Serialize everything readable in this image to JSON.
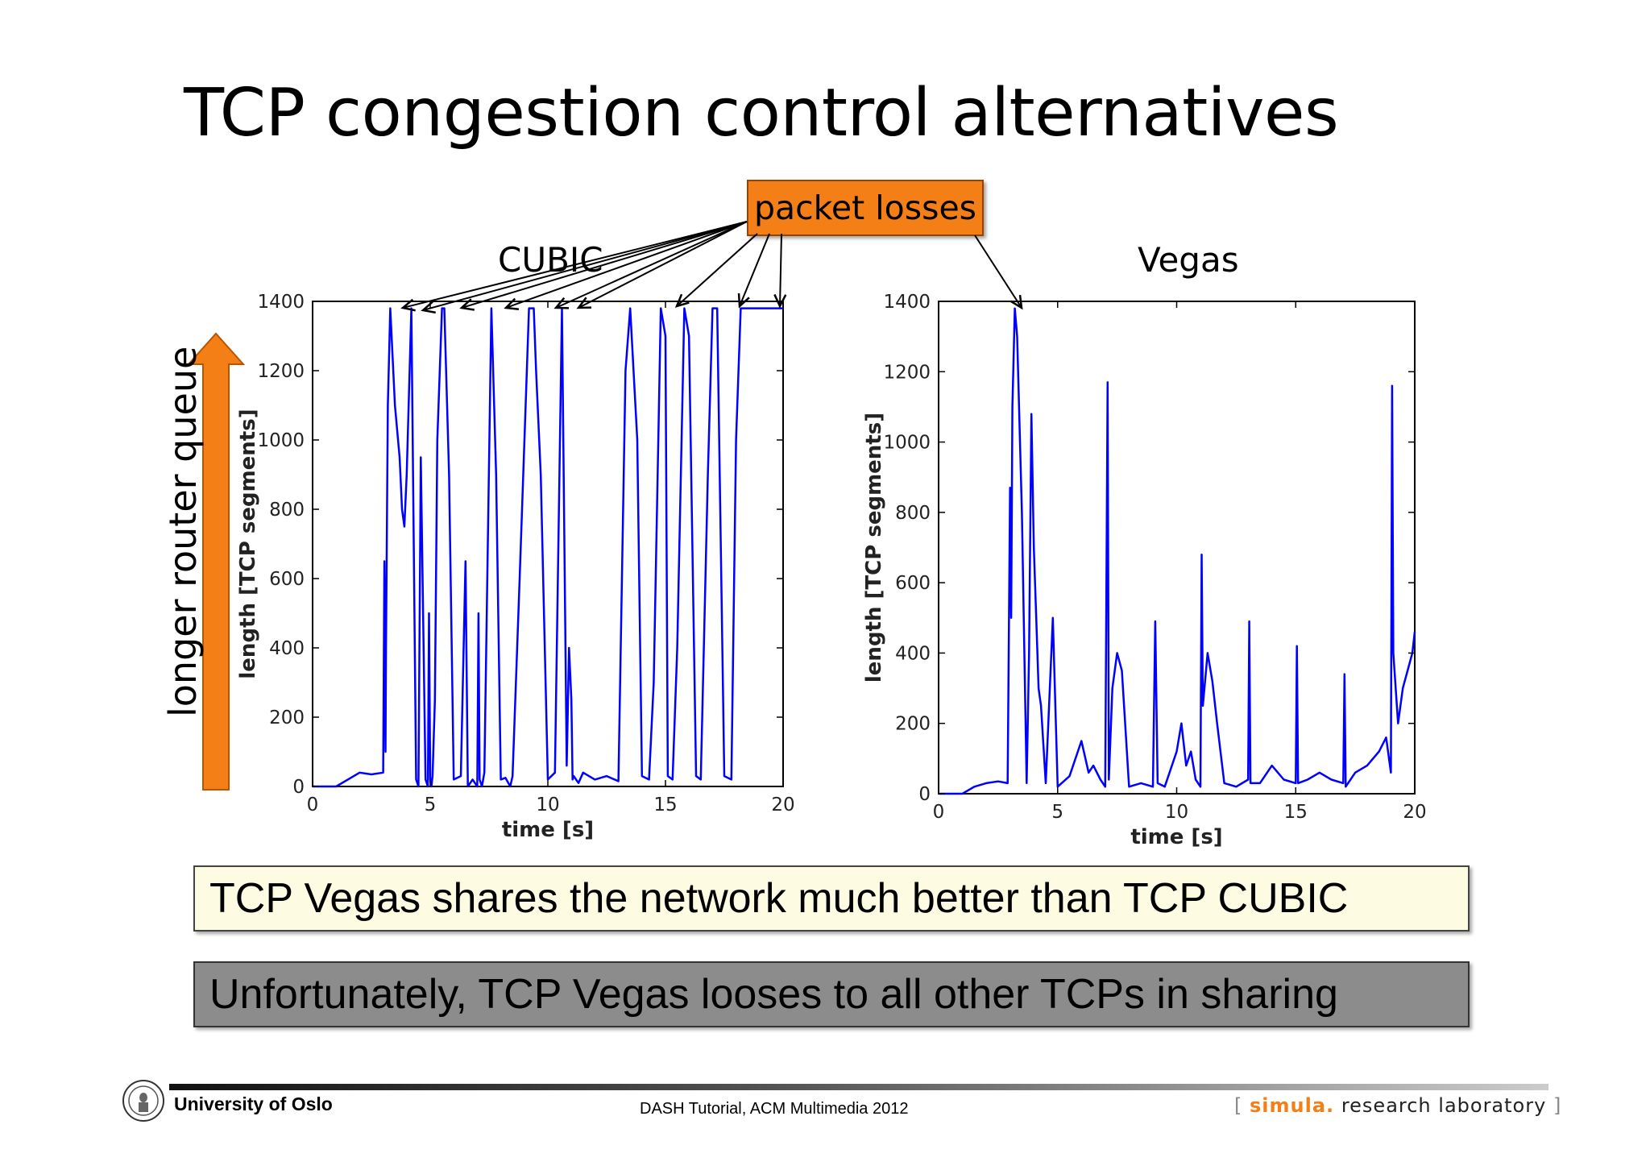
{
  "slide": {
    "title": "TCP congestion control alternatives",
    "callout": "packet losses",
    "side_label": "longer router queue",
    "box1": "TCP Vegas shares the network much better than TCP CUBIC",
    "box2": "Unfortunately, TCP Vegas looses to all other TCPs in sharing",
    "footer_left": "University of Oslo",
    "footer_center": "DASH Tutorial, ACM Multimedia 2012",
    "footer_right_open": "[",
    "footer_right_simula": "simula",
    "footer_right_dot": ".",
    "footer_right_rest": "research laboratory",
    "footer_right_close": "]"
  },
  "colors": {
    "series": "#0000ff",
    "callout": "#f57f17",
    "box1": "#fefbe3",
    "box2": "#8c8c8c",
    "arrow": "#f57f17"
  },
  "icons": {
    "logo": "university-seal-icon",
    "arrow": "up-arrow-icon"
  },
  "chart_data": [
    {
      "type": "line",
      "title": "CUBIC",
      "xlabel": "time [s]",
      "ylabel": "length [TCP segments]",
      "xlim": [
        0,
        20
      ],
      "ylim": [
        0,
        1400
      ],
      "xticks": [
        0,
        5,
        10,
        15,
        20
      ],
      "yticks": [
        0,
        200,
        400,
        600,
        800,
        1000,
        1200,
        1400
      ],
      "grid": false,
      "series": [
        {
          "x": [
            0,
            1.0,
            1.5,
            2.0,
            2.5,
            3.0,
            3.05,
            3.1,
            3.12,
            3.2,
            3.3,
            3.5,
            3.7,
            3.8,
            3.9,
            4.0,
            4.2,
            4.4,
            4.5,
            4.6,
            4.8,
            4.9,
            4.95,
            5.0,
            5.05,
            5.1,
            5.2,
            5.3,
            5.5,
            5.6,
            5.8,
            6.0,
            6.3,
            6.5,
            6.6,
            6.8,
            7.0,
            7.05,
            7.1,
            7.2,
            7.3,
            7.6,
            7.8,
            8.0,
            8.2,
            8.4,
            8.5,
            8.8,
            9.2,
            9.4,
            9.5,
            9.7,
            10.0,
            10.3,
            10.6,
            10.8,
            10.9,
            11.0,
            11.05,
            11.1,
            11.2,
            11.3,
            11.5,
            12.0,
            12.5,
            13.0,
            13.3,
            13.5,
            13.8,
            14.0,
            14.3,
            14.5,
            14.8,
            15.0,
            15.1,
            15.3,
            15.5,
            15.8,
            16.0,
            16.3,
            16.5,
            16.8,
            17.0,
            17.2,
            17.5,
            17.8,
            18.0,
            18.2,
            18.5,
            18.8,
            19.0,
            19.1,
            19.3,
            19.5,
            19.7,
            19.9,
            20.0
          ],
          "y": [
            0,
            0,
            20,
            40,
            35,
            40,
            650,
            100,
            400,
            1100,
            1380,
            1100,
            950,
            800,
            750,
            900,
            1380,
            20,
            0,
            950,
            20,
            0,
            500,
            20,
            0,
            30,
            250,
            1000,
            1380,
            1380,
            900,
            20,
            30,
            650,
            0,
            20,
            0,
            500,
            20,
            0,
            40,
            1380,
            900,
            20,
            25,
            0,
            30,
            600,
            1380,
            1380,
            1200,
            900,
            20,
            40,
            1380,
            60,
            400,
            250,
            20,
            30,
            20,
            10,
            40,
            20,
            30,
            15,
            1200,
            1380,
            1000,
            30,
            20,
            300,
            1380,
            1300,
            30,
            20,
            400,
            1380,
            1300,
            30,
            20,
            900,
            1380,
            1380,
            30,
            20,
            1000,
            1380,
            1380,
            1380,
            1380,
            1380,
            1380,
            1380,
            1380,
            1380,
            1380
          ]
        }
      ]
    },
    {
      "type": "line",
      "title": "Vegas",
      "xlabel": "time [s]",
      "ylabel": "length [TCP segments]",
      "xlim": [
        0,
        20
      ],
      "ylim": [
        0,
        1400
      ],
      "xticks": [
        0,
        5,
        10,
        15,
        20
      ],
      "yticks": [
        0,
        200,
        400,
        600,
        800,
        1000,
        1200,
        1400
      ],
      "grid": false,
      "series": [
        {
          "x": [
            0,
            1.0,
            1.5,
            2.0,
            2.5,
            2.9,
            3.0,
            3.05,
            3.1,
            3.2,
            3.3,
            3.5,
            3.7,
            3.8,
            3.9,
            4.0,
            4.1,
            4.2,
            4.3,
            4.5,
            4.8,
            5.0,
            5.5,
            6.0,
            6.3,
            6.5,
            6.8,
            7.0,
            7.1,
            7.15,
            7.3,
            7.5,
            7.7,
            8.0,
            8.5,
            9.0,
            9.1,
            9.2,
            9.5,
            10.0,
            10.2,
            10.4,
            10.6,
            10.8,
            11.0,
            11.05,
            11.1,
            11.3,
            11.5,
            11.7,
            12.0,
            12.5,
            13.0,
            13.05,
            13.1,
            13.5,
            14.0,
            14.5,
            15.0,
            15.05,
            15.1,
            15.5,
            16.0,
            16.5,
            17.0,
            17.05,
            17.1,
            17.5,
            18.0,
            18.5,
            18.8,
            19.0,
            19.05,
            19.1,
            19.3,
            19.5,
            19.7,
            19.9,
            20.0
          ],
          "y": [
            0,
            0,
            20,
            30,
            35,
            30,
            870,
            500,
            1100,
            1380,
            1300,
            800,
            30,
            400,
            1080,
            700,
            500,
            300,
            250,
            30,
            500,
            20,
            50,
            150,
            60,
            80,
            40,
            20,
            1170,
            40,
            300,
            400,
            350,
            20,
            30,
            20,
            490,
            30,
            20,
            120,
            200,
            80,
            120,
            40,
            20,
            680,
            250,
            400,
            320,
            200,
            30,
            20,
            40,
            490,
            30,
            30,
            80,
            40,
            30,
            420,
            30,
            40,
            60,
            40,
            30,
            340,
            20,
            60,
            80,
            120,
            160,
            60,
            1160,
            400,
            200,
            300,
            350,
            400,
            460
          ]
        }
      ]
    }
  ]
}
